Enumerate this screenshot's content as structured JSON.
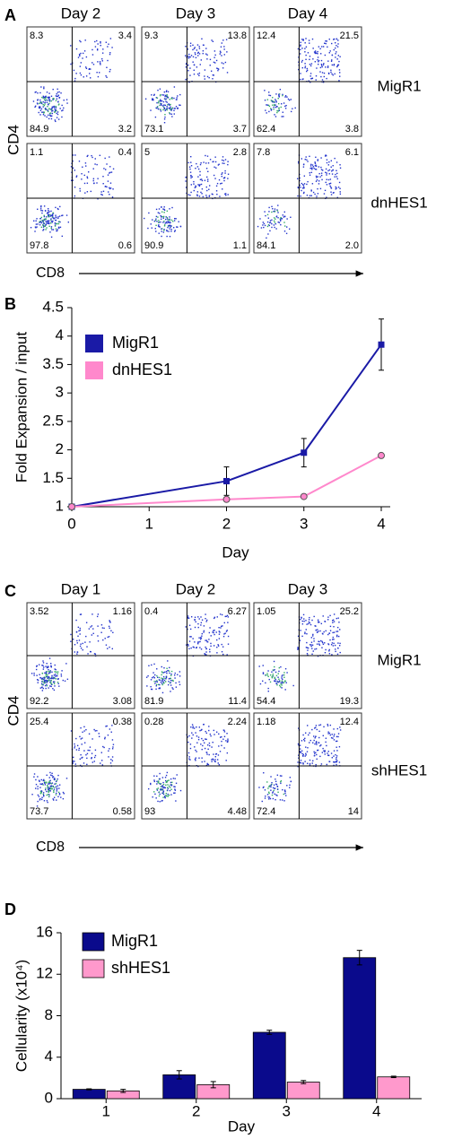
{
  "flow_panels": [
    {
      "label": "A",
      "days": [
        "Day 2",
        "Day 3",
        "Day 4"
      ],
      "ylabel": "CD4",
      "xlabel": "CD8",
      "rows": [
        {
          "name": "MigR1",
          "plots": [
            [
              "8.3",
              "3.4",
              "84.9",
              "3.2"
            ],
            [
              "9.3",
              "13.8",
              "73.1",
              "3.7"
            ],
            [
              "12.4",
              "21.5",
              "62.4",
              "3.8"
            ]
          ]
        },
        {
          "name": "dnHES1",
          "plots": [
            [
              "1.1",
              "0.4",
              "97.8",
              "0.6"
            ],
            [
              "5",
              "2.8",
              "90.9",
              "1.1"
            ],
            [
              "7.8",
              "6.1",
              "84.1",
              "2.0"
            ]
          ]
        }
      ]
    },
    {
      "label": "C",
      "days": [
        "Day 1",
        "Day 2",
        "Day 3"
      ],
      "ylabel": "CD4",
      "xlabel": "CD8",
      "rows": [
        {
          "name": "MigR1",
          "plots": [
            [
              "3.52",
              "1.16",
              "92.2",
              "3.08"
            ],
            [
              "0.4",
              "6.27",
              "81.9",
              "11.4"
            ],
            [
              "1.05",
              "25.2",
              "54.4",
              "19.3"
            ]
          ]
        },
        {
          "name": "shHES1",
          "plots": [
            [
              "25.4",
              "0.38",
              "73.7",
              "0.58"
            ],
            [
              "0.28",
              "2.24",
              "93",
              "4.48"
            ],
            [
              "1.18",
              "12.4",
              "72.4",
              "14"
            ]
          ]
        }
      ]
    }
  ],
  "chart_data": [
    {
      "type": "line",
      "label": "B",
      "ylabel": "Fold Expansion / input",
      "xlabel": "Day",
      "x": [
        0,
        2,
        3,
        4
      ],
      "xlim": [
        0,
        4
      ],
      "xticks": [
        0,
        1,
        2,
        3,
        4
      ],
      "ylim": [
        1,
        4.5
      ],
      "yticks": [
        1,
        1.5,
        2,
        2.5,
        3,
        3.5,
        4,
        4.5
      ],
      "series": [
        {
          "name": "MigR1",
          "color": "#1a1aa6",
          "marker": "square",
          "values": [
            1.0,
            1.45,
            1.95,
            3.85
          ],
          "errors": [
            0.02,
            0.25,
            0.25,
            0.45
          ]
        },
        {
          "name": "dnHES1",
          "color": "#ff88cc",
          "marker": "circle",
          "values": [
            1.0,
            1.13,
            1.18,
            1.9
          ],
          "errors": [
            0.02,
            0.03,
            0.03,
            0.03
          ]
        }
      ]
    },
    {
      "type": "bar",
      "label": "D",
      "ylabel": "Cellularity (x10⁴)",
      "xlabel": "Day",
      "categories": [
        "1",
        "2",
        "3",
        "4"
      ],
      "ylim": [
        0,
        16
      ],
      "yticks": [
        0,
        4,
        8,
        12,
        16
      ],
      "series": [
        {
          "name": "MigR1",
          "color": "#0a0a8c",
          "values": [
            0.9,
            2.3,
            6.4,
            13.6
          ],
          "errors": [
            0.05,
            0.4,
            0.2,
            0.7
          ]
        },
        {
          "name": "shHES1",
          "color": "#ff99cc",
          "values": [
            0.75,
            1.35,
            1.6,
            2.1
          ],
          "errors": [
            0.15,
            0.3,
            0.15,
            0.07
          ]
        }
      ]
    }
  ]
}
